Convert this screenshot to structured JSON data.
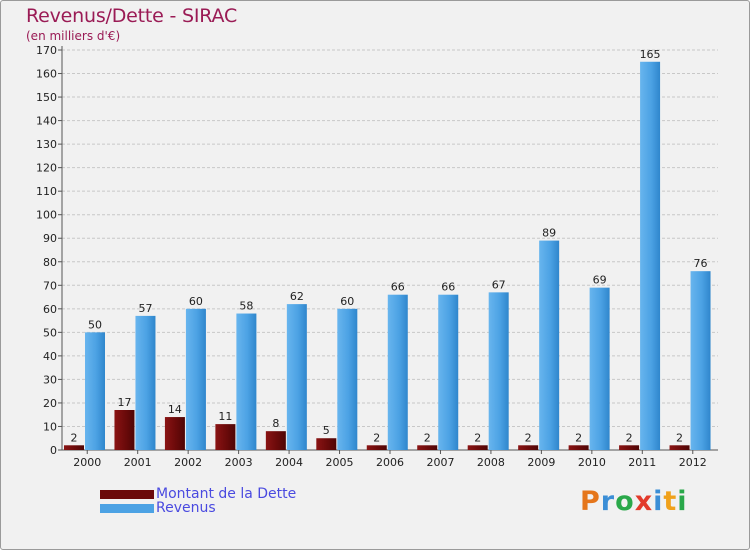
{
  "title": "Revenus/Dette - SIRAC",
  "subtitle": "(en milliers d'€)",
  "colors": {
    "title": "#9a1b55",
    "dette": "#6b0a0a",
    "revenus": "#4ca2e4",
    "legend_text": "#4a4ae0",
    "grid": "#c8c8c8",
    "axis_text": "#222222"
  },
  "legend": {
    "dette_label": "Montant de la Dette",
    "revenus_label": "Revenus"
  },
  "logo": {
    "text": "Proxiti",
    "letters": [
      "P",
      "r",
      "o",
      "x",
      "i",
      "t",
      "i"
    ],
    "letter_colors": [
      "#e5761b",
      "#3b8ed6",
      "#2aa84a",
      "#e23a2b",
      "#3b8ed6",
      "#f0a11b",
      "#2aa84a"
    ]
  },
  "chart_data": {
    "type": "bar",
    "title": "Revenus/Dette - SIRAC",
    "ylabel": "(en milliers d'€)",
    "xlabel": "",
    "ylim": [
      0,
      170
    ],
    "ytick_step": 10,
    "grid": true,
    "categories": [
      "2000",
      "2001",
      "2002",
      "2003",
      "2004",
      "2005",
      "2006",
      "2007",
      "2008",
      "2009",
      "2010",
      "2011",
      "2012"
    ],
    "series": [
      {
        "name": "Montant de la Dette",
        "values": [
          2,
          17,
          14,
          11,
          8,
          5,
          2,
          2,
          2,
          2,
          2,
          2,
          2
        ]
      },
      {
        "name": "Revenus",
        "values": [
          50,
          57,
          60,
          58,
          62,
          60,
          66,
          66,
          67,
          89,
          69,
          165,
          76
        ]
      }
    ]
  }
}
